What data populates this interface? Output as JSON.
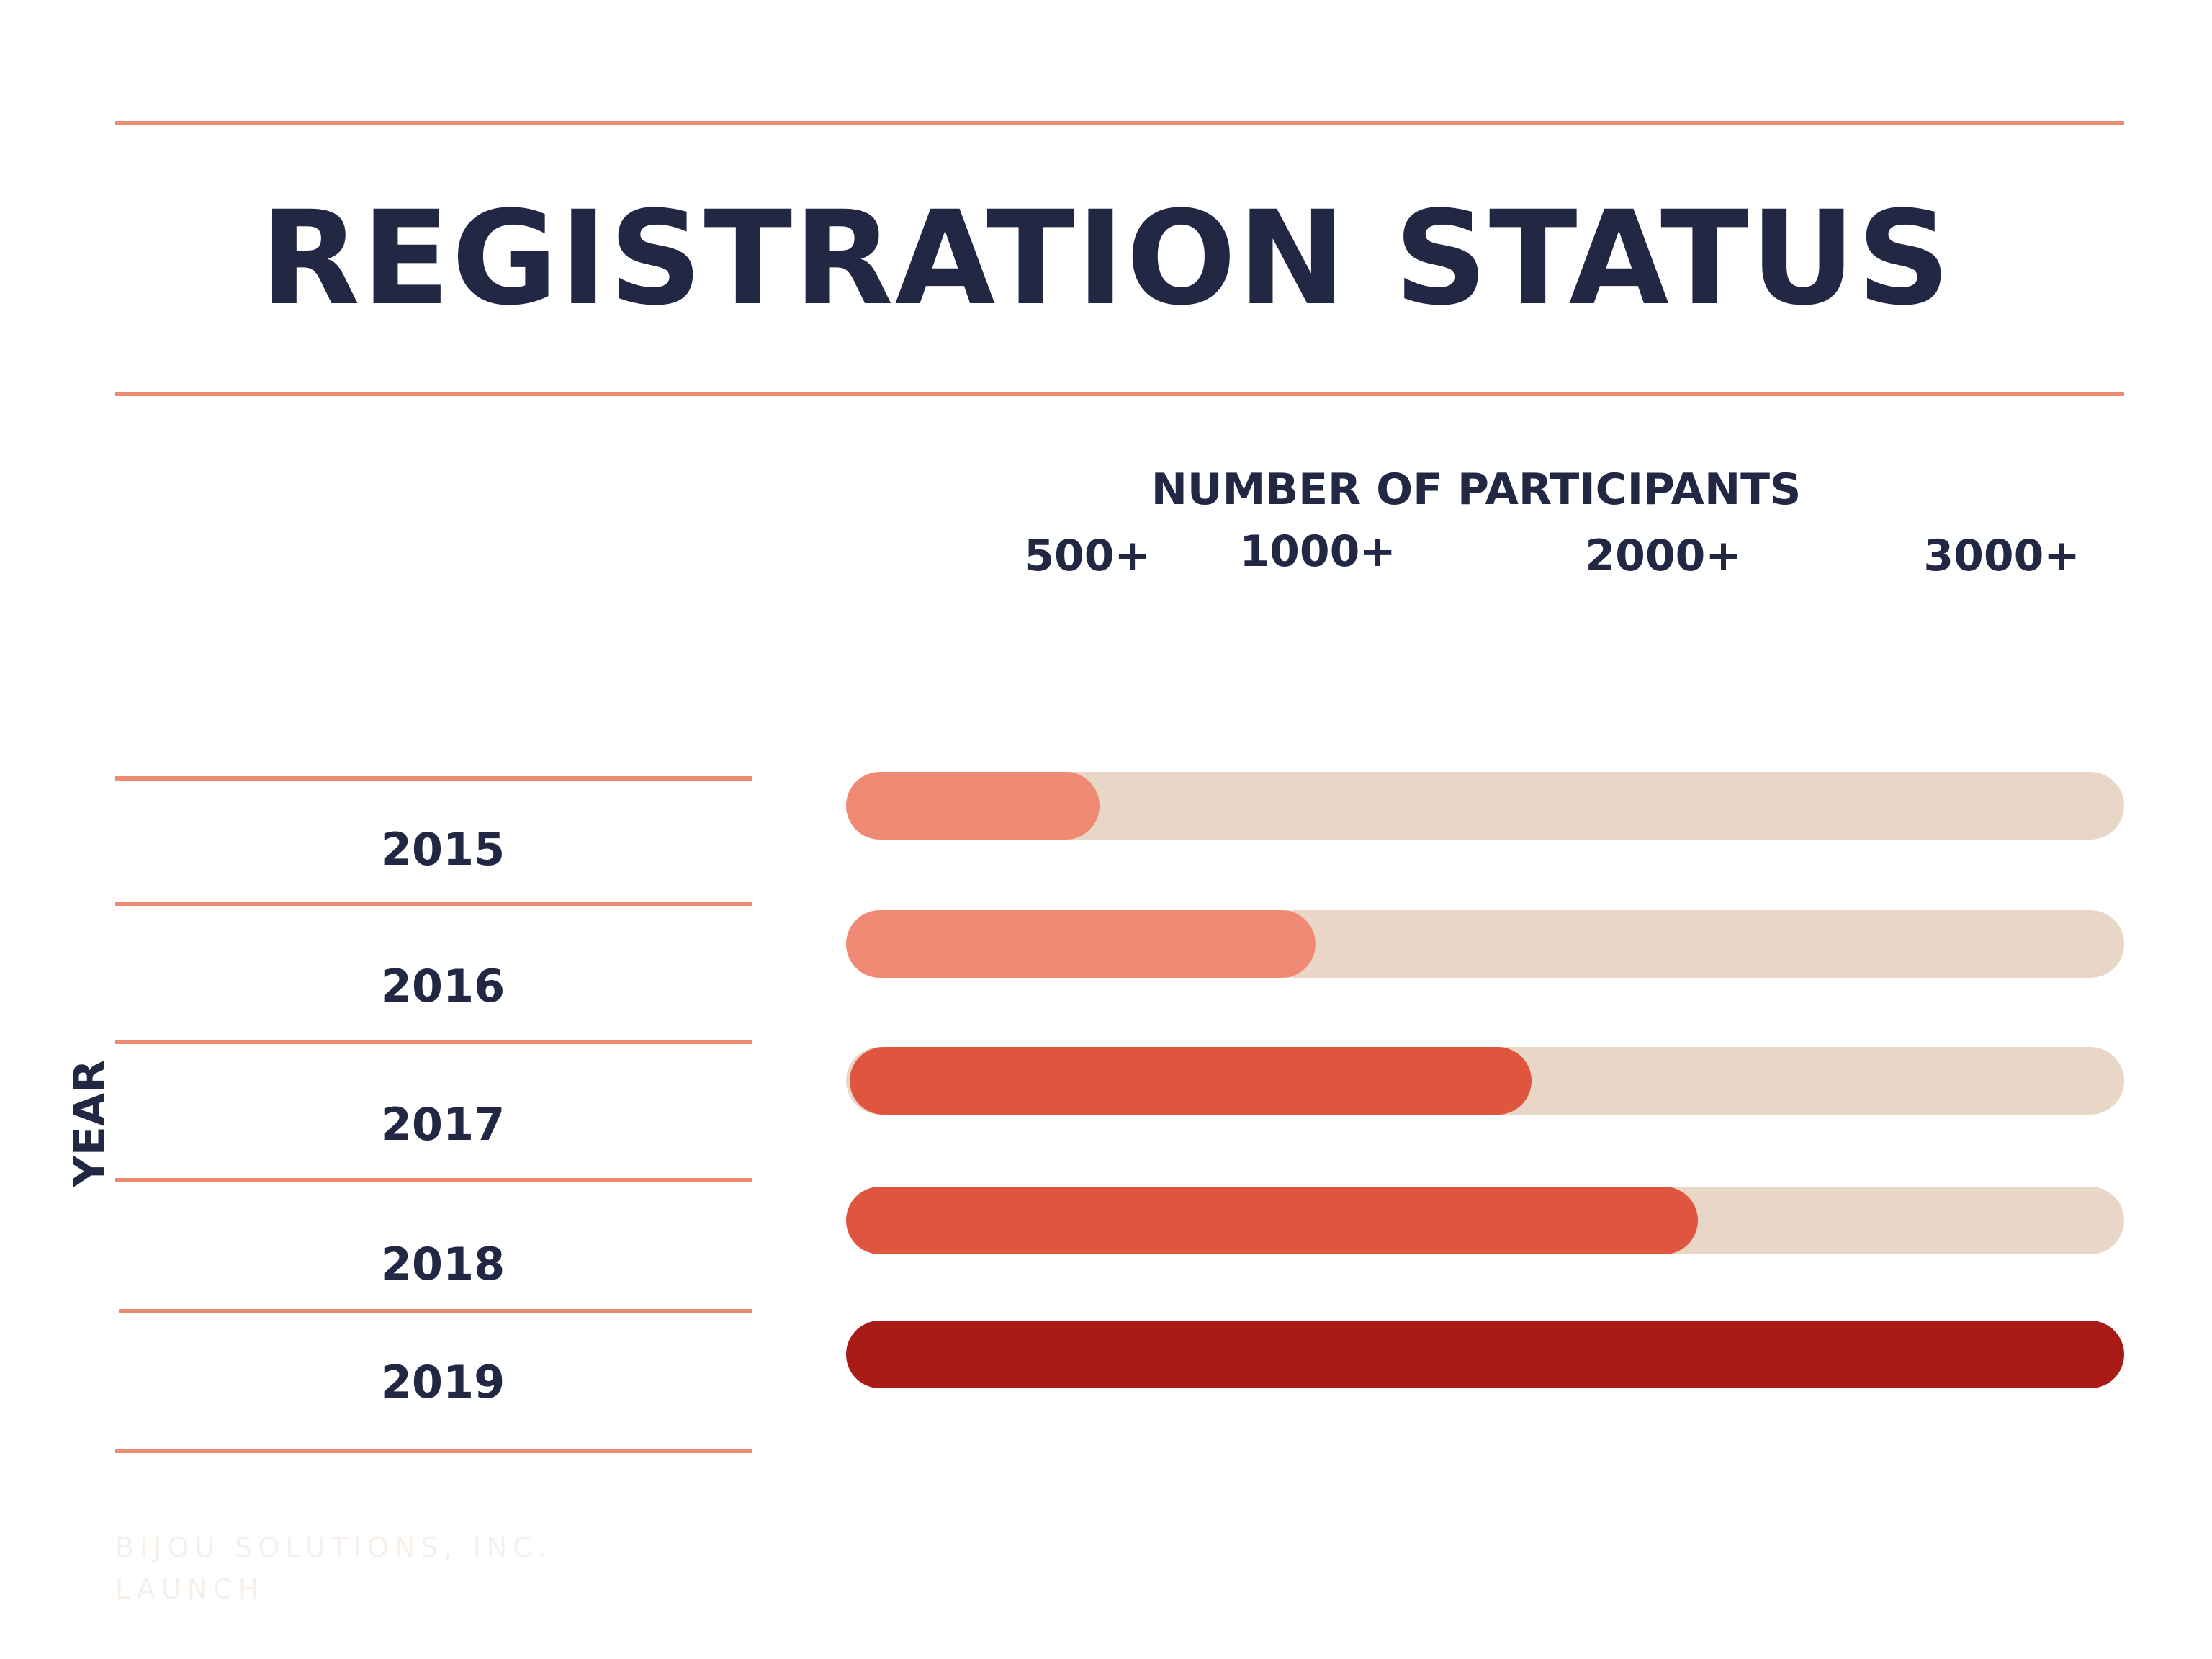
{
  "chart_data": {
    "type": "bar",
    "orientation": "horizontal",
    "title": "REGISTRATION STATUS",
    "xlabel": "NUMBER OF PARTICIPANTS",
    "ylabel": "YEAR",
    "x_ticks": [
      "500+",
      "1000+",
      "2000+",
      "3000+"
    ],
    "categories": [
      "2015",
      "2016",
      "2017",
      "2018",
      "2019"
    ],
    "values": [
      500,
      1000,
      1600,
      2000,
      3000
    ],
    "xlim": [
      0,
      3000
    ],
    "colors": [
      "#ee8a73",
      "#ee8a73",
      "#e0553d",
      "#e0553d",
      "#a91b17"
    ],
    "track_color": "#e8d7c6",
    "grid": false,
    "legend": "none"
  },
  "footer": {
    "line1": "BIJOU SOLUTIONS, INC.",
    "line2": "LAUNCH"
  }
}
